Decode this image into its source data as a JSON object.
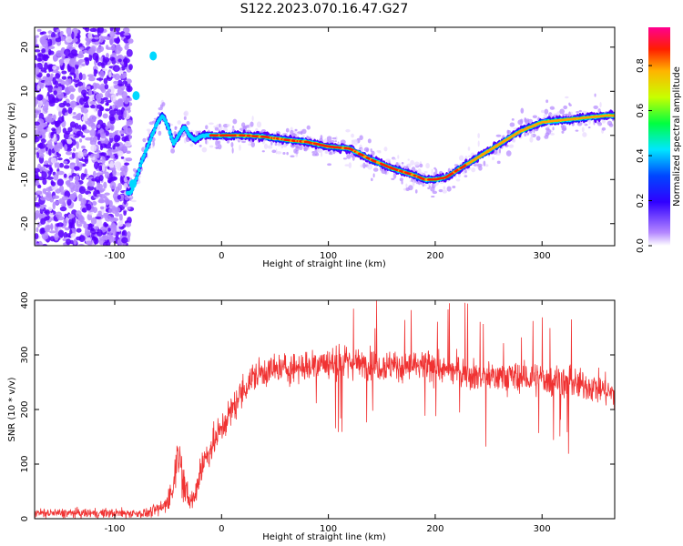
{
  "figure": {
    "title": "S122.2023.070.16.47.G27"
  },
  "chart_data": [
    {
      "type": "heatmap",
      "xlabel": "Height of straight line (km)",
      "ylabel": "Frequency (Hz)",
      "xlim": [
        -175,
        368
      ],
      "ylim": [
        -25,
        24.5
      ],
      "xticks": [
        -100,
        0,
        100,
        200,
        300
      ],
      "yticks": [
        -20,
        -10,
        0,
        10,
        20
      ],
      "colorbar": {
        "label": "Normalized spectral amplitude",
        "range": [
          0,
          0.97
        ],
        "ticks": [
          0.0,
          0.2,
          0.4,
          0.6,
          0.8
        ]
      },
      "ridge": {
        "x": [
          -85,
          -80,
          -75,
          -70,
          -65,
          -60,
          -55,
          -50,
          -45,
          -40,
          -35,
          -30,
          -25,
          -20,
          -15,
          -10,
          0,
          20,
          40,
          60,
          80,
          100,
          120,
          140,
          160,
          180,
          190,
          200,
          210,
          220,
          240,
          260,
          280,
          300,
          320,
          340,
          360,
          368
        ],
        "y": [
          -13,
          -10,
          -6,
          -3,
          0,
          3,
          4.5,
          2,
          -2,
          0,
          2,
          0,
          -1,
          -0.3,
          0,
          0,
          0,
          0,
          -0.3,
          -1,
          -1.5,
          -2.5,
          -3,
          -5.5,
          -7.5,
          -9,
          -10,
          -10,
          -9.5,
          -8,
          -5,
          -2,
          1,
          3,
          3.5,
          4,
          4.5,
          4.5
        ]
      },
      "grid": false
    },
    {
      "type": "line",
      "xlabel": "Height of straight line (km)",
      "ylabel": "SNR (10 * v/v)",
      "xlim": [
        -175,
        368
      ],
      "ylim": [
        0,
        400
      ],
      "xticks": [
        -100,
        0,
        100,
        200,
        300
      ],
      "yticks": [
        0,
        100,
        200,
        300,
        400
      ],
      "envelope": {
        "x": [
          -175,
          -150,
          -100,
          -70,
          -55,
          -45,
          -42,
          -38,
          -35,
          -30,
          -25,
          -20,
          -10,
          0,
          10,
          20,
          30,
          40,
          60,
          80,
          100,
          120,
          140,
          160,
          180,
          200,
          220,
          240,
          260,
          280,
          300,
          310,
          320,
          330,
          340,
          350,
          360,
          368
        ],
        "y": [
          10,
          10,
          10,
          10,
          20,
          55,
          120,
          110,
          60,
          30,
          40,
          90,
          130,
          165,
          200,
          235,
          260,
          270,
          275,
          280,
          285,
          285,
          282,
          280,
          278,
          275,
          270,
          262,
          260,
          258,
          255,
          255,
          252,
          245,
          245,
          240,
          235,
          225
        ]
      },
      "color": "#f03232",
      "grid": false
    }
  ]
}
